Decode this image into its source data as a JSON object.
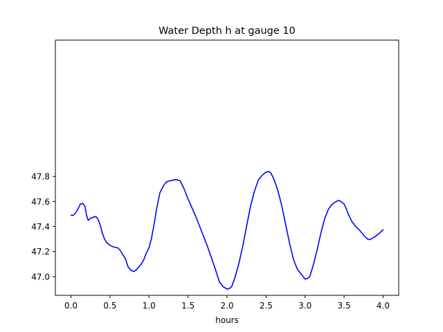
{
  "chart_data": {
    "type": "line",
    "title": "Water Depth h at gauge 10",
    "xlabel": "hours",
    "ylabel": "",
    "xlim": [
      -0.2,
      4.2
    ],
    "ylim": [
      46.85,
      48.89
    ],
    "x_ticks": [
      0.0,
      0.5,
      1.0,
      1.5,
      2.0,
      2.5,
      3.0,
      3.5,
      4.0
    ],
    "x_tick_labels": [
      "0.0",
      "0.5",
      "1.0",
      "1.5",
      "2.0",
      "2.5",
      "3.0",
      "3.5",
      "4.0"
    ],
    "y_ticks": [
      47.0,
      47.2,
      47.4,
      47.6,
      47.8
    ],
    "y_tick_labels": [
      "47.0",
      "47.2",
      "47.4",
      "47.6",
      "47.8"
    ],
    "grid": false,
    "series": [
      {
        "color": "#0000ff",
        "x": [
          0.0,
          0.03,
          0.06,
          0.09,
          0.12,
          0.15,
          0.18,
          0.2,
          0.22,
          0.24,
          0.26,
          0.28,
          0.3,
          0.33,
          0.36,
          0.38,
          0.4,
          0.43,
          0.46,
          0.5,
          0.53,
          0.56,
          0.6,
          0.63,
          0.66,
          0.7,
          0.73,
          0.76,
          0.8,
          0.83,
          0.86,
          0.9,
          0.93,
          0.96,
          1.0,
          1.03,
          1.06,
          1.1,
          1.14,
          1.18,
          1.22,
          1.26,
          1.3,
          1.35,
          1.4,
          1.45,
          1.5,
          1.55,
          1.6,
          1.65,
          1.7,
          1.75,
          1.8,
          1.85,
          1.9,
          1.95,
          2.0,
          2.03,
          2.06,
          2.1,
          2.15,
          2.2,
          2.25,
          2.3,
          2.35,
          2.4,
          2.45,
          2.5,
          2.53,
          2.56,
          2.6,
          2.65,
          2.7,
          2.75,
          2.8,
          2.85,
          2.9,
          2.95,
          3.0,
          3.03,
          3.06,
          3.1,
          3.15,
          3.2,
          3.25,
          3.3,
          3.35,
          3.4,
          3.43,
          3.46,
          3.5,
          3.53,
          3.56,
          3.6,
          3.65,
          3.7,
          3.75,
          3.8,
          3.83,
          3.86,
          3.9,
          3.95,
          4.0
        ],
        "y": [
          47.49,
          47.49,
          47.51,
          47.54,
          47.58,
          47.585,
          47.56,
          47.49,
          47.45,
          47.46,
          47.47,
          47.47,
          47.48,
          47.475,
          47.44,
          47.4,
          47.35,
          47.3,
          47.27,
          47.25,
          47.24,
          47.235,
          47.23,
          47.21,
          47.18,
          47.14,
          47.08,
          47.055,
          47.04,
          47.05,
          47.07,
          47.1,
          47.13,
          47.18,
          47.23,
          47.3,
          47.4,
          47.55,
          47.67,
          47.72,
          47.755,
          47.765,
          47.77,
          47.775,
          47.765,
          47.7,
          47.62,
          47.55,
          47.48,
          47.4,
          47.32,
          47.24,
          47.15,
          47.06,
          46.96,
          46.92,
          46.9,
          46.905,
          46.92,
          46.99,
          47.1,
          47.24,
          47.4,
          47.56,
          47.68,
          47.77,
          47.81,
          47.835,
          47.84,
          47.83,
          47.78,
          47.69,
          47.57,
          47.42,
          47.27,
          47.14,
          47.06,
          47.02,
          46.98,
          46.985,
          47.0,
          47.08,
          47.2,
          47.34,
          47.46,
          47.54,
          47.58,
          47.6,
          47.61,
          47.6,
          47.58,
          47.54,
          47.49,
          47.44,
          47.4,
          47.37,
          47.33,
          47.3,
          47.295,
          47.305,
          47.32,
          47.345,
          47.375
        ]
      }
    ]
  }
}
